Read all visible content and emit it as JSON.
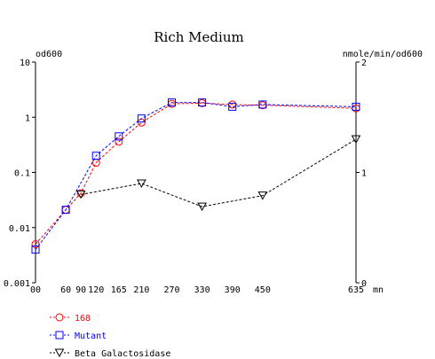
{
  "chart_data": {
    "type": "line",
    "title": "Rich Medium",
    "y_left_label": "od600",
    "y_right_label": "nmole/min/od600",
    "x_unit_label": "mn",
    "y_left_scale": "log",
    "y_left_range": [
      0.001,
      10
    ],
    "y_left_ticks": [
      "0.001",
      "0.01",
      "0.1",
      "1",
      "10"
    ],
    "y_right_range": [
      0,
      2
    ],
    "y_right_ticks": [
      "0",
      "1",
      "2"
    ],
    "x_range": [
      0,
      635
    ],
    "x_ticks": [
      "00",
      "60",
      "90",
      "120",
      "165",
      "210",
      "270",
      "330",
      "390",
      "450",
      "635"
    ],
    "grid": false,
    "legend_position": "bottom-left",
    "series": [
      {
        "name": "168",
        "axis": "left",
        "color": "#ff0000",
        "marker": "circle",
        "x": [
          0,
          60,
          90,
          120,
          165,
          210,
          270,
          330,
          390,
          450,
          635
        ],
        "y": [
          0.005,
          0.021,
          0.042,
          0.15,
          0.36,
          0.8,
          1.75,
          1.8,
          1.7,
          1.65,
          1.45
        ]
      },
      {
        "name": "Mutant",
        "axis": "left",
        "color": "#0000ff",
        "marker": "square",
        "x": [
          0,
          60,
          120,
          165,
          210,
          270,
          330,
          390,
          450,
          635
        ],
        "y": [
          0.004,
          0.021,
          0.2,
          0.45,
          0.95,
          1.85,
          1.85,
          1.55,
          1.7,
          1.55
        ]
      },
      {
        "name": "Beta Galactosidase",
        "axis": "right",
        "color": "#000000",
        "marker": "triangle-down",
        "x": [
          90,
          210,
          330,
          450,
          635
        ],
        "y": [
          0.8,
          0.9,
          0.69,
          0.79,
          1.3
        ]
      }
    ]
  }
}
